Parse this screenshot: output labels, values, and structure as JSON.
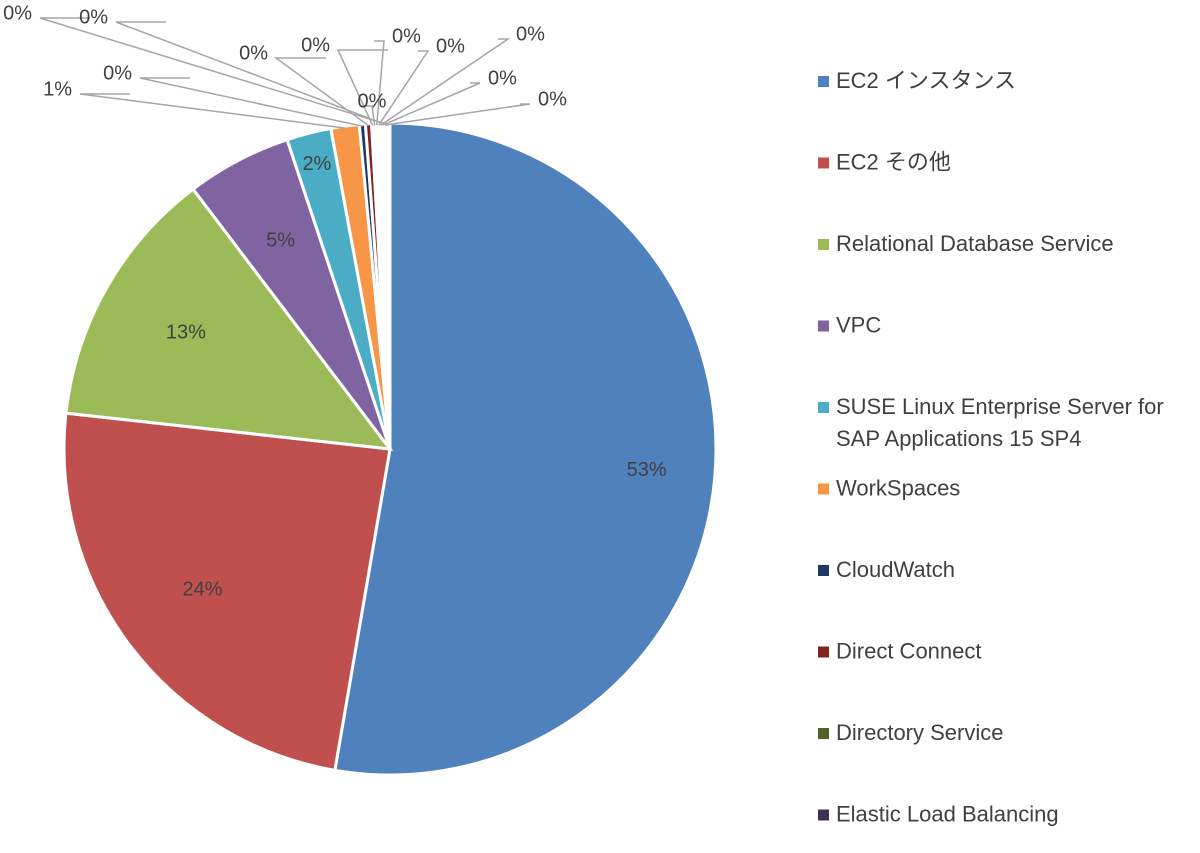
{
  "chart_data": {
    "type": "pie",
    "title": "",
    "legend_position": "right",
    "value_unit": "%",
    "series": [
      {
        "categories": [
          "EC2 インスタンス",
          "EC2 その他",
          "Relational Database Service",
          "VPC",
          "SUSE Linux Enterprise Server for SAP Applications 15 SP4",
          "WorkSpaces",
          "CloudWatch",
          "Direct Connect",
          "Directory Service",
          "Elastic Load Balancing",
          "",
          "",
          "",
          "",
          "",
          "",
          ""
        ],
        "values": [
          52.6,
          24.0,
          12.9,
          5.2,
          2.2,
          1.4,
          0.3,
          0.3,
          0.1,
          0.1,
          0.1,
          0.1,
          0.1,
          0.1,
          0.1,
          0.1,
          0.1
        ],
        "data_labels": [
          "53%",
          "24%",
          "13%",
          "5%",
          "2%",
          "1%",
          "0%",
          "0%",
          "0%",
          "0%",
          "0%",
          "0%",
          "0%",
          "0%",
          "0%",
          "0%",
          "0%"
        ],
        "colors": [
          "#4F81BD",
          "#C0504D",
          "#9BBB59",
          "#8064A2",
          "#4BACC6",
          "#F79646",
          "#1F3864",
          "#7F2420",
          "#4F6228",
          "#3F3151",
          "#215968",
          "#984807",
          "#95B3D7",
          "#D99694",
          "#C3D69B",
          "#B3A2C7",
          "#92CDDC"
        ]
      }
    ],
    "legend": [
      {
        "label": "EC2 インスタンス",
        "color": "#4F81BD"
      },
      {
        "label": "EC2 その他",
        "color": "#C0504D"
      },
      {
        "label": "Relational Database Service",
        "color": "#9BBB59"
      },
      {
        "label": "VPC",
        "color": "#8064A2"
      },
      {
        "label": "SUSE Linux Enterprise Server for SAP Applications 15 SP4",
        "lines": [
          "SUSE Linux Enterprise Server for",
          "SAP Applications 15 SP4"
        ],
        "color": "#4BACC6"
      },
      {
        "label": "WorkSpaces",
        "color": "#F79646"
      },
      {
        "label": "CloudWatch",
        "color": "#1F3864"
      },
      {
        "label": "Direct Connect",
        "color": "#7F2420"
      },
      {
        "label": "Directory Service",
        "color": "#4F6228"
      },
      {
        "label": "Elastic Load Balancing",
        "color": "#3F3151"
      }
    ]
  }
}
